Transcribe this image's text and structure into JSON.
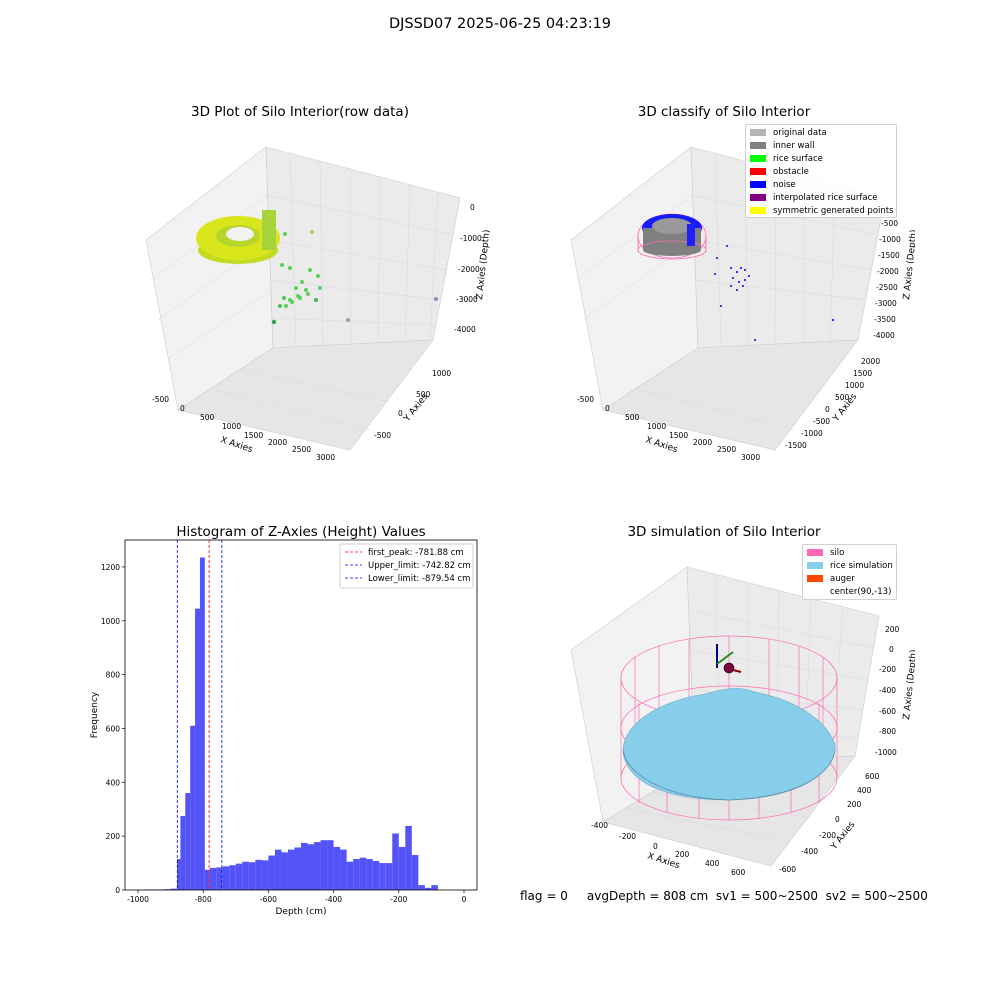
{
  "suptitle": "DJSSD07 2025-06-25 04:23:19",
  "plot_raw": {
    "title": "3D Plot of Silo Interior(row data)",
    "xlabel": "X Axies",
    "ylabel": "Y Axies",
    "zlabel": "Z Axies (Depth)",
    "xticks": [
      "-500",
      "0",
      "500",
      "1000",
      "1500",
      "2000",
      "2500",
      "3000"
    ],
    "yticks": [
      "-500",
      "0",
      "500",
      "1000"
    ],
    "zticks": [
      "0",
      "-1000",
      "-2000",
      "-3000",
      "-4000"
    ],
    "colors": {
      "ring": "#cfe21f",
      "scatter": "#5ad05a"
    }
  },
  "plot_classify": {
    "title": "3D classify of Silo Interior",
    "xlabel": "X Axies",
    "ylabel": "Y Axies",
    "zlabel": "Z Axies (Depth)",
    "xticks": [
      "-500",
      "0",
      "500",
      "1000",
      "1500",
      "2000",
      "2500",
      "3000"
    ],
    "yticks": [
      "-1500",
      "-1000",
      "-500",
      "0",
      "500",
      "1000",
      "1500",
      "2000"
    ],
    "zticks": [
      "-500",
      "-1000",
      "-1500",
      "-2000",
      "-2500",
      "-3000",
      "-3500",
      "-4000"
    ],
    "legend": [
      {
        "label": "original data",
        "color": "#b4b4b4"
      },
      {
        "label": "inner wall",
        "color": "#808080"
      },
      {
        "label": "rice surface",
        "color": "#00ff00"
      },
      {
        "label": "obstacle",
        "color": "#ff0000"
      },
      {
        "label": "noise",
        "color": "#0000ff"
      },
      {
        "label": "interpolated rice surface",
        "color": "#800080"
      },
      {
        "label": "symmetric generated points",
        "color": "#ffff00"
      }
    ]
  },
  "chart_data": {
    "type": "bar",
    "title": "Histogram of Z-Axies (Height) Values",
    "xlabel": "Depth (cm)",
    "ylabel": "Frequency",
    "xlim": [
      -1040,
      40
    ],
    "ylim": [
      0,
      1300
    ],
    "xticks": [
      -1000,
      -800,
      -600,
      -400,
      -200,
      0
    ],
    "yticks": [
      0,
      200,
      400,
      600,
      800,
      1000,
      1200
    ],
    "bar_color": "#5050f8",
    "bin_width": 20,
    "bins": [
      [
        -980,
        2
      ],
      [
        -960,
        2
      ],
      [
        -940,
        2
      ],
      [
        -920,
        3
      ],
      [
        -900,
        5
      ],
      [
        -880,
        115
      ],
      [
        -870,
        275
      ],
      [
        -855,
        360
      ],
      [
        -840,
        610
      ],
      [
        -825,
        1045
      ],
      [
        -810,
        1235
      ],
      [
        -795,
        75
      ],
      [
        -780,
        82
      ],
      [
        -760,
        84
      ],
      [
        -740,
        88
      ],
      [
        -720,
        92
      ],
      [
        -700,
        98
      ],
      [
        -680,
        105
      ],
      [
        -660,
        103
      ],
      [
        -640,
        112
      ],
      [
        -620,
        110
      ],
      [
        -600,
        128
      ],
      [
        -580,
        150
      ],
      [
        -560,
        140
      ],
      [
        -540,
        150
      ],
      [
        -520,
        158
      ],
      [
        -500,
        175
      ],
      [
        -480,
        170
      ],
      [
        -460,
        178
      ],
      [
        -440,
        185
      ],
      [
        -420,
        185
      ],
      [
        -400,
        160
      ],
      [
        -380,
        150
      ],
      [
        -360,
        105
      ],
      [
        -340,
        115
      ],
      [
        -320,
        120
      ],
      [
        -300,
        115
      ],
      [
        -280,
        108
      ],
      [
        -260,
        100
      ],
      [
        -240,
        100
      ],
      [
        -220,
        210
      ],
      [
        -200,
        160
      ],
      [
        -180,
        238
      ],
      [
        -160,
        130
      ],
      [
        -140,
        18
      ],
      [
        -120,
        8
      ],
      [
        -100,
        18
      ]
    ],
    "lines": [
      {
        "label": "first_peak: -781.88 cm",
        "x": -781.88,
        "color": "#ff0000"
      },
      {
        "label": "Upper_limit: -742.82 cm",
        "x": -742.82,
        "color": "#0000ff"
      },
      {
        "label": "Lower_limit: -879.54 cm",
        "x": -879.54,
        "color": "#0000ff"
      }
    ],
    "legend_position": "top-right"
  },
  "plot_sim": {
    "title": "3D simulation of Silo Interior",
    "xlabel": "X Axies",
    "ylabel": "Y Axies",
    "zlabel": "Z Axies (Depth)",
    "xticks": [
      "-400",
      "-200",
      "0",
      "200",
      "400",
      "600"
    ],
    "yticks": [
      "-600",
      "-400",
      "-200",
      "0",
      "200",
      "400",
      "600"
    ],
    "zticks": [
      "200",
      "0",
      "-200",
      "-400",
      "-600",
      "-800",
      "-1000"
    ],
    "legend": [
      {
        "label": "silo",
        "color": "#ff69b4"
      },
      {
        "label": "rice simulation",
        "color": "#87ceeb"
      },
      {
        "label": "auger",
        "color": "#ff4500"
      },
      {
        "label": "center(90,-13)",
        "color": "#ffffff"
      }
    ]
  },
  "footer": "flag = 0     avgDepth = 808 cm  sv1 = 500~2500  sv2 = 500~2500"
}
